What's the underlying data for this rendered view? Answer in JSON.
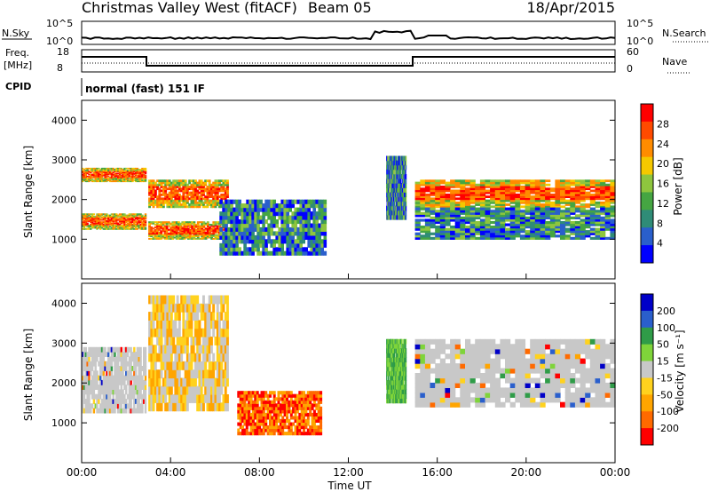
{
  "header": {
    "title": "Christmas Valley West (fitACF)",
    "beam": "Beam 05",
    "date": "18/Apr/2015"
  },
  "params": {
    "nsky_label": "N.Sky",
    "nsky_ticks": [
      "10^5",
      "10^0"
    ],
    "nsearch_label": "N.Search",
    "freq_label": "Freq.",
    "freq_unit": "[MHz]",
    "freq_ticks": [
      "18",
      "8"
    ],
    "nave_label": "Nave",
    "nave_ticks": [
      "60",
      "0"
    ],
    "cpid_label": "CPID",
    "cpid_value": "normal (fast) 151 IF"
  },
  "colors": {
    "power": [
      "#0000ff",
      "#2a5fcc",
      "#2f8c77",
      "#45a542",
      "#8ec53e",
      "#f5c800",
      "#ff8c00",
      "#ff4a00",
      "#ff0000"
    ],
    "velocity": [
      "#ff0000",
      "#ff6a00",
      "#ffa500",
      "#ffd21e",
      "#c8c8c8",
      "#7fd43a",
      "#2f9c48",
      "#2a5fcc",
      "#0000c8"
    ]
  },
  "chart_data": [
    {
      "type": "heatmap",
      "panel": "power",
      "ylabel": "Slant Range [km]",
      "yticks": [
        "4000",
        "3000",
        "2000",
        "1000"
      ],
      "ylim": [
        0,
        4500
      ],
      "xlim": [
        0,
        24
      ],
      "colorbar_label": "Power [dB]",
      "colorbar_ticks": [
        "28",
        "24",
        "20",
        "16",
        "12",
        "8",
        "4"
      ],
      "bands": [
        {
          "t0": 0.0,
          "t1": 2.9,
          "r0": 1250,
          "r1": 1650,
          "level": "high"
        },
        {
          "t0": 0.0,
          "t1": 2.9,
          "r0": 2450,
          "r1": 2800,
          "level": "high"
        },
        {
          "t0": 3.0,
          "t1": 6.5,
          "r0": 1000,
          "r1": 1450,
          "level": "high"
        },
        {
          "t0": 3.0,
          "t1": 6.6,
          "r0": 1800,
          "r1": 2500,
          "level": "high"
        },
        {
          "t0": 6.2,
          "t1": 11.0,
          "r0": 600,
          "r1": 2000,
          "level": "low"
        },
        {
          "t0": 13.7,
          "t1": 14.6,
          "r0": 1500,
          "r1": 3100,
          "level": "low"
        },
        {
          "t0": 15.0,
          "t1": 24.0,
          "r0": 1800,
          "r1": 2500,
          "level": "high"
        },
        {
          "t0": 15.0,
          "t1": 24.0,
          "r0": 1000,
          "r1": 1800,
          "level": "low"
        }
      ]
    },
    {
      "type": "heatmap",
      "panel": "velocity",
      "ylabel": "Slant Range [km]",
      "yticks": [
        "4000",
        "3000",
        "2000",
        "1000"
      ],
      "ylim": [
        0,
        4500
      ],
      "xlim": [
        0,
        24
      ],
      "colorbar_label": "Velocity [m s⁻¹]",
      "colorbar_ticks": [
        "200",
        "100",
        "50",
        "15",
        "-15",
        "-50",
        "-100",
        "-200"
      ],
      "xlabel": "Time UT",
      "xticks": [
        "00:00",
        "04:00",
        "08:00",
        "12:00",
        "16:00",
        "20:00",
        "00:00"
      ],
      "bands": [
        {
          "t0": 0.0,
          "t1": 2.9,
          "r0": 1250,
          "r1": 2900,
          "level": "near-zero"
        },
        {
          "t0": 3.0,
          "t1": 6.6,
          "r0": 1300,
          "r1": 4200,
          "level": "negative"
        },
        {
          "t0": 7.0,
          "t1": 10.8,
          "r0": 700,
          "r1": 1800,
          "level": "strong-negative"
        },
        {
          "t0": 13.7,
          "t1": 14.6,
          "r0": 1500,
          "r1": 3100,
          "level": "positive"
        },
        {
          "t0": 15.0,
          "t1": 24.0,
          "r0": 1400,
          "r1": 3100,
          "level": "near-zero"
        }
      ]
    }
  ]
}
